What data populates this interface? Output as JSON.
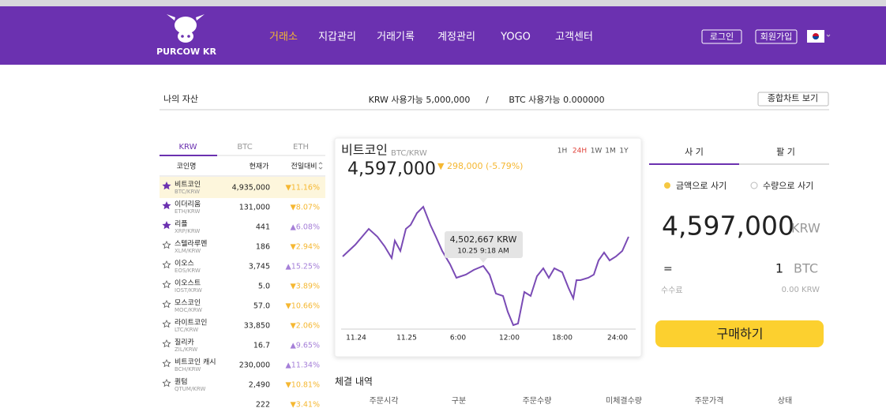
{
  "header": {
    "logo": "PURCOW KR",
    "nav": [
      "거래소",
      "지갑관리",
      "거래기록",
      "계정관리",
      "YOGO",
      "고객센터"
    ],
    "buttons": [
      "로그인",
      "회원가입"
    ]
  },
  "assets": {
    "label": "나의 자산",
    "krw": "KRW 사용가능 5,000,000",
    "separator": "/",
    "btc": "BTC 사용가능 0.000000",
    "button": "종합차트 보기"
  },
  "market": {
    "tabs": [
      "KRW",
      "BTC",
      "ETH"
    ],
    "columns": [
      "코인명",
      "현재가",
      "전일대비"
    ],
    "rows": [
      {
        "favorite": true,
        "name": "비트코인",
        "pair": "BTC/KRW",
        "price": "4,935,000",
        "change": "▼11.16%"
      },
      {
        "favorite": true,
        "name": "이더리움",
        "pair": "ETH/KRW",
        "price": "131,000",
        "change": "▼8.07%"
      },
      {
        "favorite": true,
        "name": "리플",
        "pair": "XRP/KRW",
        "price": "441",
        "change": "▲6.08%"
      },
      {
        "favorite": false,
        "name": "스텔라루멘",
        "pair": "XLM/KRW",
        "price": "186",
        "change": "▼2.94%"
      },
      {
        "favorite": false,
        "name": "이오스",
        "pair": "EOS/KRW",
        "price": "3,745",
        "change": "▲15.25%"
      },
      {
        "favorite": false,
        "name": "이오스트",
        "pair": "IOST/KRW",
        "price": "5.0",
        "change": "▼3.89%"
      },
      {
        "favorite": false,
        "name": "모스코인",
        "pair": "MOC/KRW",
        "price": "57.0",
        "change": "▼10.66%"
      },
      {
        "favorite": false,
        "name": "라이트코인",
        "pair": "LTC/KRW",
        "price": "33,850",
        "change": "▼2.06%"
      },
      {
        "favorite": false,
        "name": "질리카",
        "pair": "ZIL/KRW",
        "price": "16.7",
        "change": "▲9.65%"
      },
      {
        "favorite": false,
        "name": "비트코인 캐시",
        "pair": "BCH/KRW",
        "price": "230,000",
        "change": "▲11.34%"
      },
      {
        "favorite": false,
        "name": "퀀텀",
        "pair": "QTUM/KRW",
        "price": "2,490",
        "change": "▼10.81%"
      },
      {
        "price": "222",
        "change": "▼3.41%"
      }
    ]
  },
  "chart_card": {
    "title": "비트코인",
    "pair": "BTC/KRW",
    "price": "4,597,000",
    "change": "▼ 298,000 (-5.79%)",
    "ranges": [
      "1H",
      "24H",
      "1W",
      "1M",
      "1Y"
    ],
    "active_range": "24H",
    "x_labels": [
      "11.24",
      "11.25",
      "6:00",
      "12:00",
      "18:00",
      "24:00"
    ],
    "tooltip": {
      "price": "4,502,667 KRW",
      "time": "10.25 9:18 AM"
    }
  },
  "order": {
    "tabs": [
      "사 기",
      "팔 기"
    ],
    "options": [
      "금액으로 사기",
      "수량으로 사기"
    ],
    "amount": "4,597,000",
    "currency": "KRW",
    "equals": "=",
    "quantity": "1",
    "unit": "BTC",
    "fee_label": "수수료",
    "fee": "0.00 KRW",
    "button": "구매하기"
  },
  "history": {
    "title": "체결 내역",
    "columns": [
      "주문시각",
      "구분",
      "주문수량",
      "미체결수량",
      "주문가격",
      "상태"
    ]
  }
}
